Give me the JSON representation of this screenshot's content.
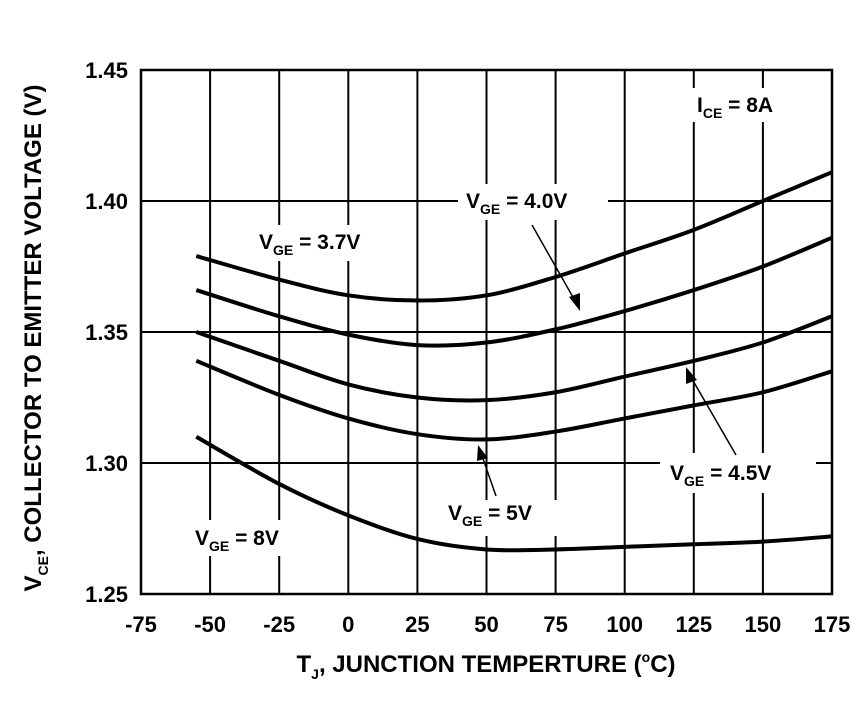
{
  "chart_data": {
    "type": "line",
    "xlabel": {
      "main": "T",
      "sub": "J",
      "rest": ", JUNCTION TEMPERTURE (",
      "sup": "o",
      "end": "C)"
    },
    "ylabel": {
      "main": "V",
      "sub": "CE",
      "rest": ", COLLECTOR TO EMITTER VOLTAGE (V)"
    },
    "xlim": [
      -75,
      175
    ],
    "ylim": [
      1.25,
      1.45
    ],
    "xticks": [
      "-75",
      "-50",
      "-25",
      "0",
      "25",
      "50",
      "75",
      "100",
      "125",
      "150",
      "175"
    ],
    "yticks": [
      "1.25",
      "1.30",
      "1.35",
      "1.40",
      "1.45"
    ],
    "grid": true,
    "condition": {
      "main": "I",
      "sub": "CE",
      "rest": " = 8A"
    },
    "series": [
      {
        "name": "V_GE = 3.7V",
        "label": {
          "main": "V",
          "sub": "GE",
          "rest": " = 3.7V"
        },
        "x": [
          -55,
          -25,
          0,
          25,
          50,
          75,
          100,
          125,
          150,
          175
        ],
        "y": [
          1.379,
          1.37,
          1.364,
          1.362,
          1.364,
          1.371,
          1.38,
          1.389,
          1.4,
          1.411
        ]
      },
      {
        "name": "V_GE = 4.0V",
        "label": {
          "main": "V",
          "sub": "GE",
          "rest": " = 4.0V"
        },
        "x": [
          -55,
          -25,
          0,
          25,
          50,
          75,
          100,
          125,
          150,
          175
        ],
        "y": [
          1.366,
          1.356,
          1.349,
          1.345,
          1.346,
          1.351,
          1.358,
          1.366,
          1.375,
          1.386
        ]
      },
      {
        "name": "V_GE = 4.5V",
        "label": {
          "main": "V",
          "sub": "GE",
          "rest": " = 4.5V"
        },
        "x": [
          -55,
          -25,
          0,
          25,
          50,
          75,
          100,
          125,
          150,
          175
        ],
        "y": [
          1.35,
          1.339,
          1.33,
          1.325,
          1.324,
          1.327,
          1.333,
          1.339,
          1.346,
          1.356
        ]
      },
      {
        "name": "V_GE = 5V",
        "label": {
          "main": "V",
          "sub": "GE",
          "rest": " = 5V"
        },
        "x": [
          -55,
          -25,
          0,
          25,
          50,
          75,
          100,
          125,
          150,
          175
        ],
        "y": [
          1.339,
          1.326,
          1.317,
          1.311,
          1.309,
          1.312,
          1.317,
          1.322,
          1.327,
          1.335
        ]
      },
      {
        "name": "V_GE = 8V",
        "label": {
          "main": "V",
          "sub": "GE",
          "rest": " = 8V"
        },
        "x": [
          -55,
          -25,
          0,
          25,
          50,
          75,
          100,
          125,
          150,
          175
        ],
        "y": [
          1.31,
          1.292,
          1.28,
          1.271,
          1.267,
          1.267,
          1.268,
          1.269,
          1.27,
          1.272
        ]
      }
    ]
  }
}
